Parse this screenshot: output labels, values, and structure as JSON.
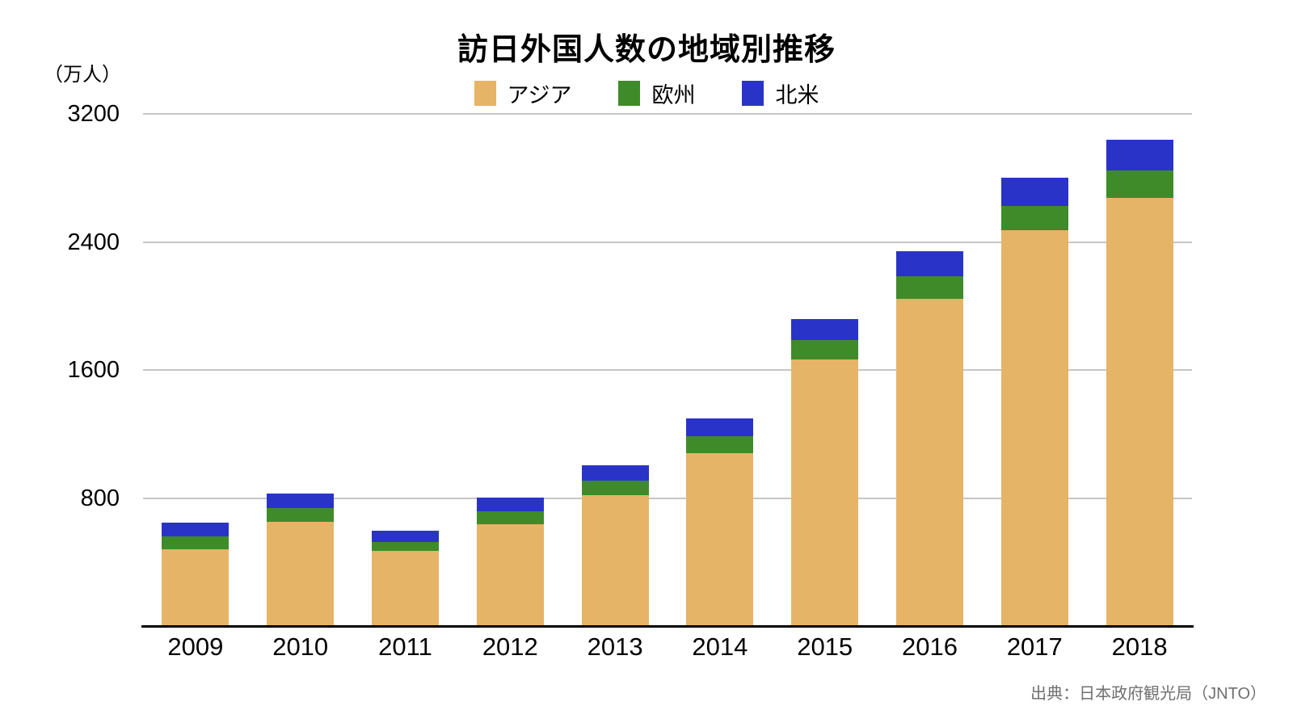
{
  "chart_data": {
    "type": "bar",
    "stacked": true,
    "title": "訪日外国人数の地域別推移",
    "unit_label": "（万人）",
    "source": "出典：日本政府観光局（JNTO）",
    "categories": [
      "2009",
      "2010",
      "2011",
      "2012",
      "2013",
      "2014",
      "2015",
      "2016",
      "2017",
      "2018"
    ],
    "series": [
      {
        "key": "asia",
        "name": "アジア",
        "color": "#e6b466",
        "values": [
          481,
          653,
          470,
          638,
          816,
          1082,
          1665,
          2043,
          2472,
          2676
        ]
      },
      {
        "key": "europe",
        "name": "欧州",
        "color": "#3f8b2a",
        "values": [
          80,
          85,
          57,
          78,
          90,
          105,
          124,
          142,
          153,
          172
        ]
      },
      {
        "key": "north-america",
        "name": "北米",
        "color": "#2a33c8",
        "values": [
          87,
          91,
          69,
          88,
          98,
          112,
          131,
          157,
          176,
          193
        ]
      }
    ],
    "y_ticks": [
      800,
      1600,
      2400,
      3200
    ],
    "ylim": [
      0,
      3200
    ],
    "grid": true,
    "legend_position": "top"
  },
  "colors": {
    "grid": "#c6c6c6",
    "axis": "#000000",
    "source_text": "#6f6f6f"
  }
}
